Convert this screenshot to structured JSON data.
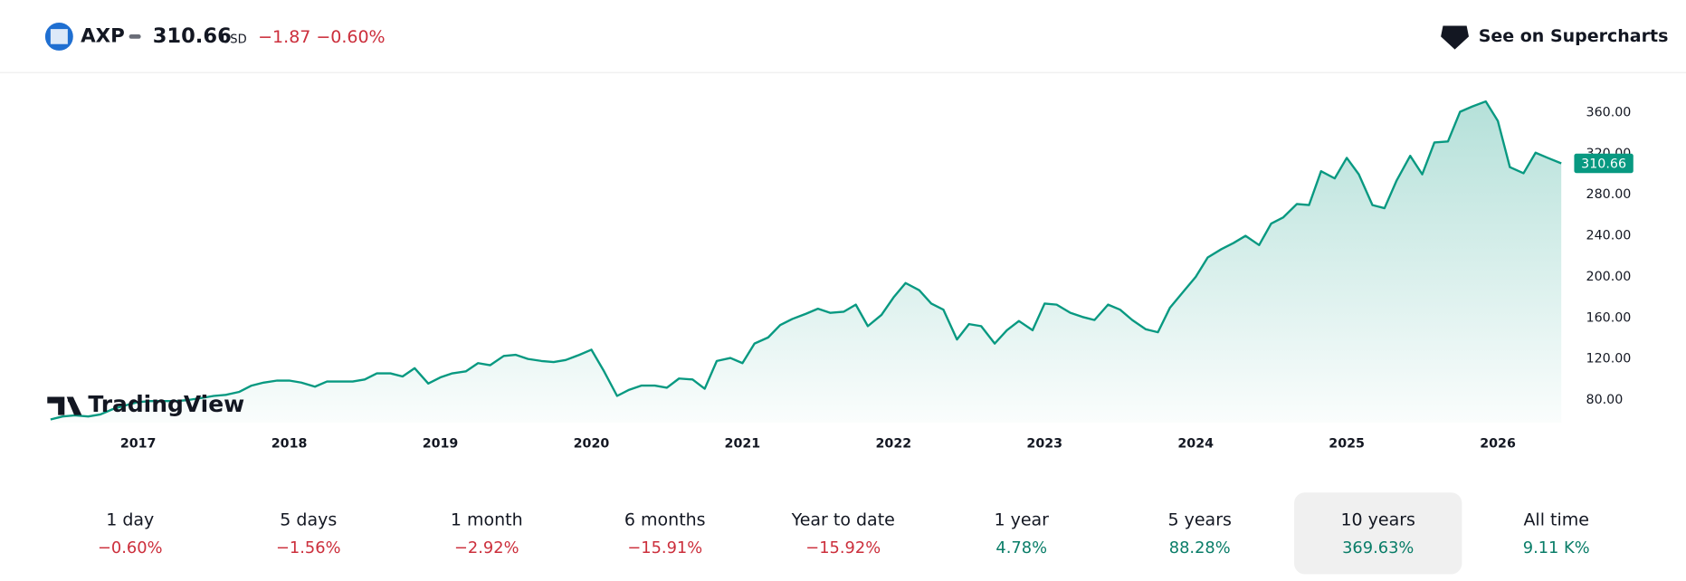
{
  "header": {
    "symbol": "AXP",
    "price": "310.66",
    "currency": "USD",
    "change": "−1.87",
    "change_percent": "−0.60%",
    "link": "See on Supercharts"
  },
  "watermark": "TradingView",
  "chart_data": {
    "type": "line",
    "color": "#089981",
    "x": [
      2016.42,
      2016.5,
      2016.58,
      2016.67,
      2016.75,
      2016.83,
      2016.92,
      2017.0,
      2017.08,
      2017.17,
      2017.25,
      2017.33,
      2017.42,
      2017.5,
      2017.58,
      2017.67,
      2017.75,
      2017.83,
      2017.92,
      2018.0,
      2018.08,
      2018.17,
      2018.25,
      2018.33,
      2018.42,
      2018.5,
      2018.58,
      2018.67,
      2018.75,
      2018.83,
      2018.92,
      2019.0,
      2019.08,
      2019.17,
      2019.25,
      2019.33,
      2019.42,
      2019.5,
      2019.58,
      2019.67,
      2019.75,
      2019.83,
      2019.92,
      2020.0,
      2020.08,
      2020.17,
      2020.25,
      2020.33,
      2020.42,
      2020.5,
      2020.58,
      2020.67,
      2020.75,
      2020.83,
      2020.92,
      2021.0,
      2021.08,
      2021.17,
      2021.25,
      2021.33,
      2021.42,
      2021.5,
      2021.58,
      2021.67,
      2021.75,
      2021.83,
      2021.92,
      2022.0,
      2022.08,
      2022.17,
      2022.25,
      2022.33,
      2022.42,
      2022.5,
      2022.58,
      2022.67,
      2022.75,
      2022.83,
      2022.92,
      2023.0,
      2023.08,
      2023.17,
      2023.25,
      2023.33,
      2023.42,
      2023.5,
      2023.58,
      2023.67,
      2023.75,
      2023.83,
      2023.92,
      2024.0,
      2024.08,
      2024.17,
      2024.25,
      2024.33,
      2024.42,
      2024.5,
      2024.58,
      2024.67,
      2024.75,
      2024.83,
      2024.92,
      2025.0,
      2025.08,
      2025.17,
      2025.25,
      2025.33,
      2025.42,
      2025.5,
      2025.58,
      2025.67,
      2025.75,
      2025.83,
      2025.92,
      2026.0,
      2026.08,
      2026.17,
      2026.25,
      2026.33,
      2026.42
    ],
    "values": [
      61,
      64,
      65,
      64,
      66,
      71,
      75,
      78,
      79,
      79,
      79,
      80,
      82,
      84,
      85,
      88,
      94,
      97,
      99,
      99,
      97,
      93,
      98,
      98,
      98,
      100,
      106,
      106,
      103,
      111,
      96,
      102,
      106,
      108,
      116,
      114,
      123,
      124,
      120,
      118,
      117,
      119,
      124,
      129,
      109,
      84,
      90,
      94,
      94,
      92,
      101,
      100,
      91,
      118,
      121,
      116,
      135,
      141,
      153,
      159,
      164,
      169,
      165,
      166,
      173,
      152,
      163,
      180,
      194,
      187,
      174,
      168,
      139,
      154,
      152,
      135,
      148,
      157,
      148,
      174,
      173,
      165,
      161,
      158,
      173,
      168,
      158,
      149,
      146,
      170,
      186,
      200,
      219,
      227,
      233,
      240,
      231,
      252,
      258,
      271,
      270,
      303,
      296,
      316,
      300,
      270,
      267,
      294,
      318,
      300,
      331,
      332,
      361,
      366,
      371,
      352,
      307,
      301,
      321,
      316,
      310.66
    ],
    "xlim": [
      2016.42,
      2026.42
    ],
    "xticks": [
      2017,
      2018,
      2019,
      2020,
      2021,
      2022,
      2023,
      2024,
      2025,
      2026
    ],
    "ylim": [
      58,
      386
    ],
    "yticks": [
      {
        "value": 80,
        "label": "80.00"
      },
      {
        "value": 120,
        "label": "120.00"
      },
      {
        "value": 160,
        "label": "160.00"
      },
      {
        "value": 200,
        "label": "200.00"
      },
      {
        "value": 240,
        "label": "240.00"
      },
      {
        "value": 280,
        "label": "280.00"
      },
      {
        "value": 320,
        "label": "320.00"
      },
      {
        "value": 360,
        "label": "360.00"
      }
    ]
  },
  "periods": [
    {
      "label": "1 day",
      "value": "−0.60%",
      "color": "#cc2f3c"
    },
    {
      "label": "5 days",
      "value": "−1.56%",
      "color": "#cc2f3c"
    },
    {
      "label": "1 month",
      "value": "−2.92%",
      "color": "#cc2f3c"
    },
    {
      "label": "6 months",
      "value": "−15.91%",
      "color": "#cc2f3c"
    },
    {
      "label": "Year to date",
      "value": "−15.92%",
      "color": "#cc2f3c"
    },
    {
      "label": "1 year",
      "value": "4.78%",
      "color": "#0a7d68"
    },
    {
      "label": "5 years",
      "value": "88.28%",
      "color": "#0a7d68"
    },
    {
      "label": "10 years",
      "value": "369.63%",
      "color": "#0a7d68",
      "selected": true
    },
    {
      "label": "All time",
      "value": "9.11 K%",
      "color": "#0a7d68"
    }
  ]
}
